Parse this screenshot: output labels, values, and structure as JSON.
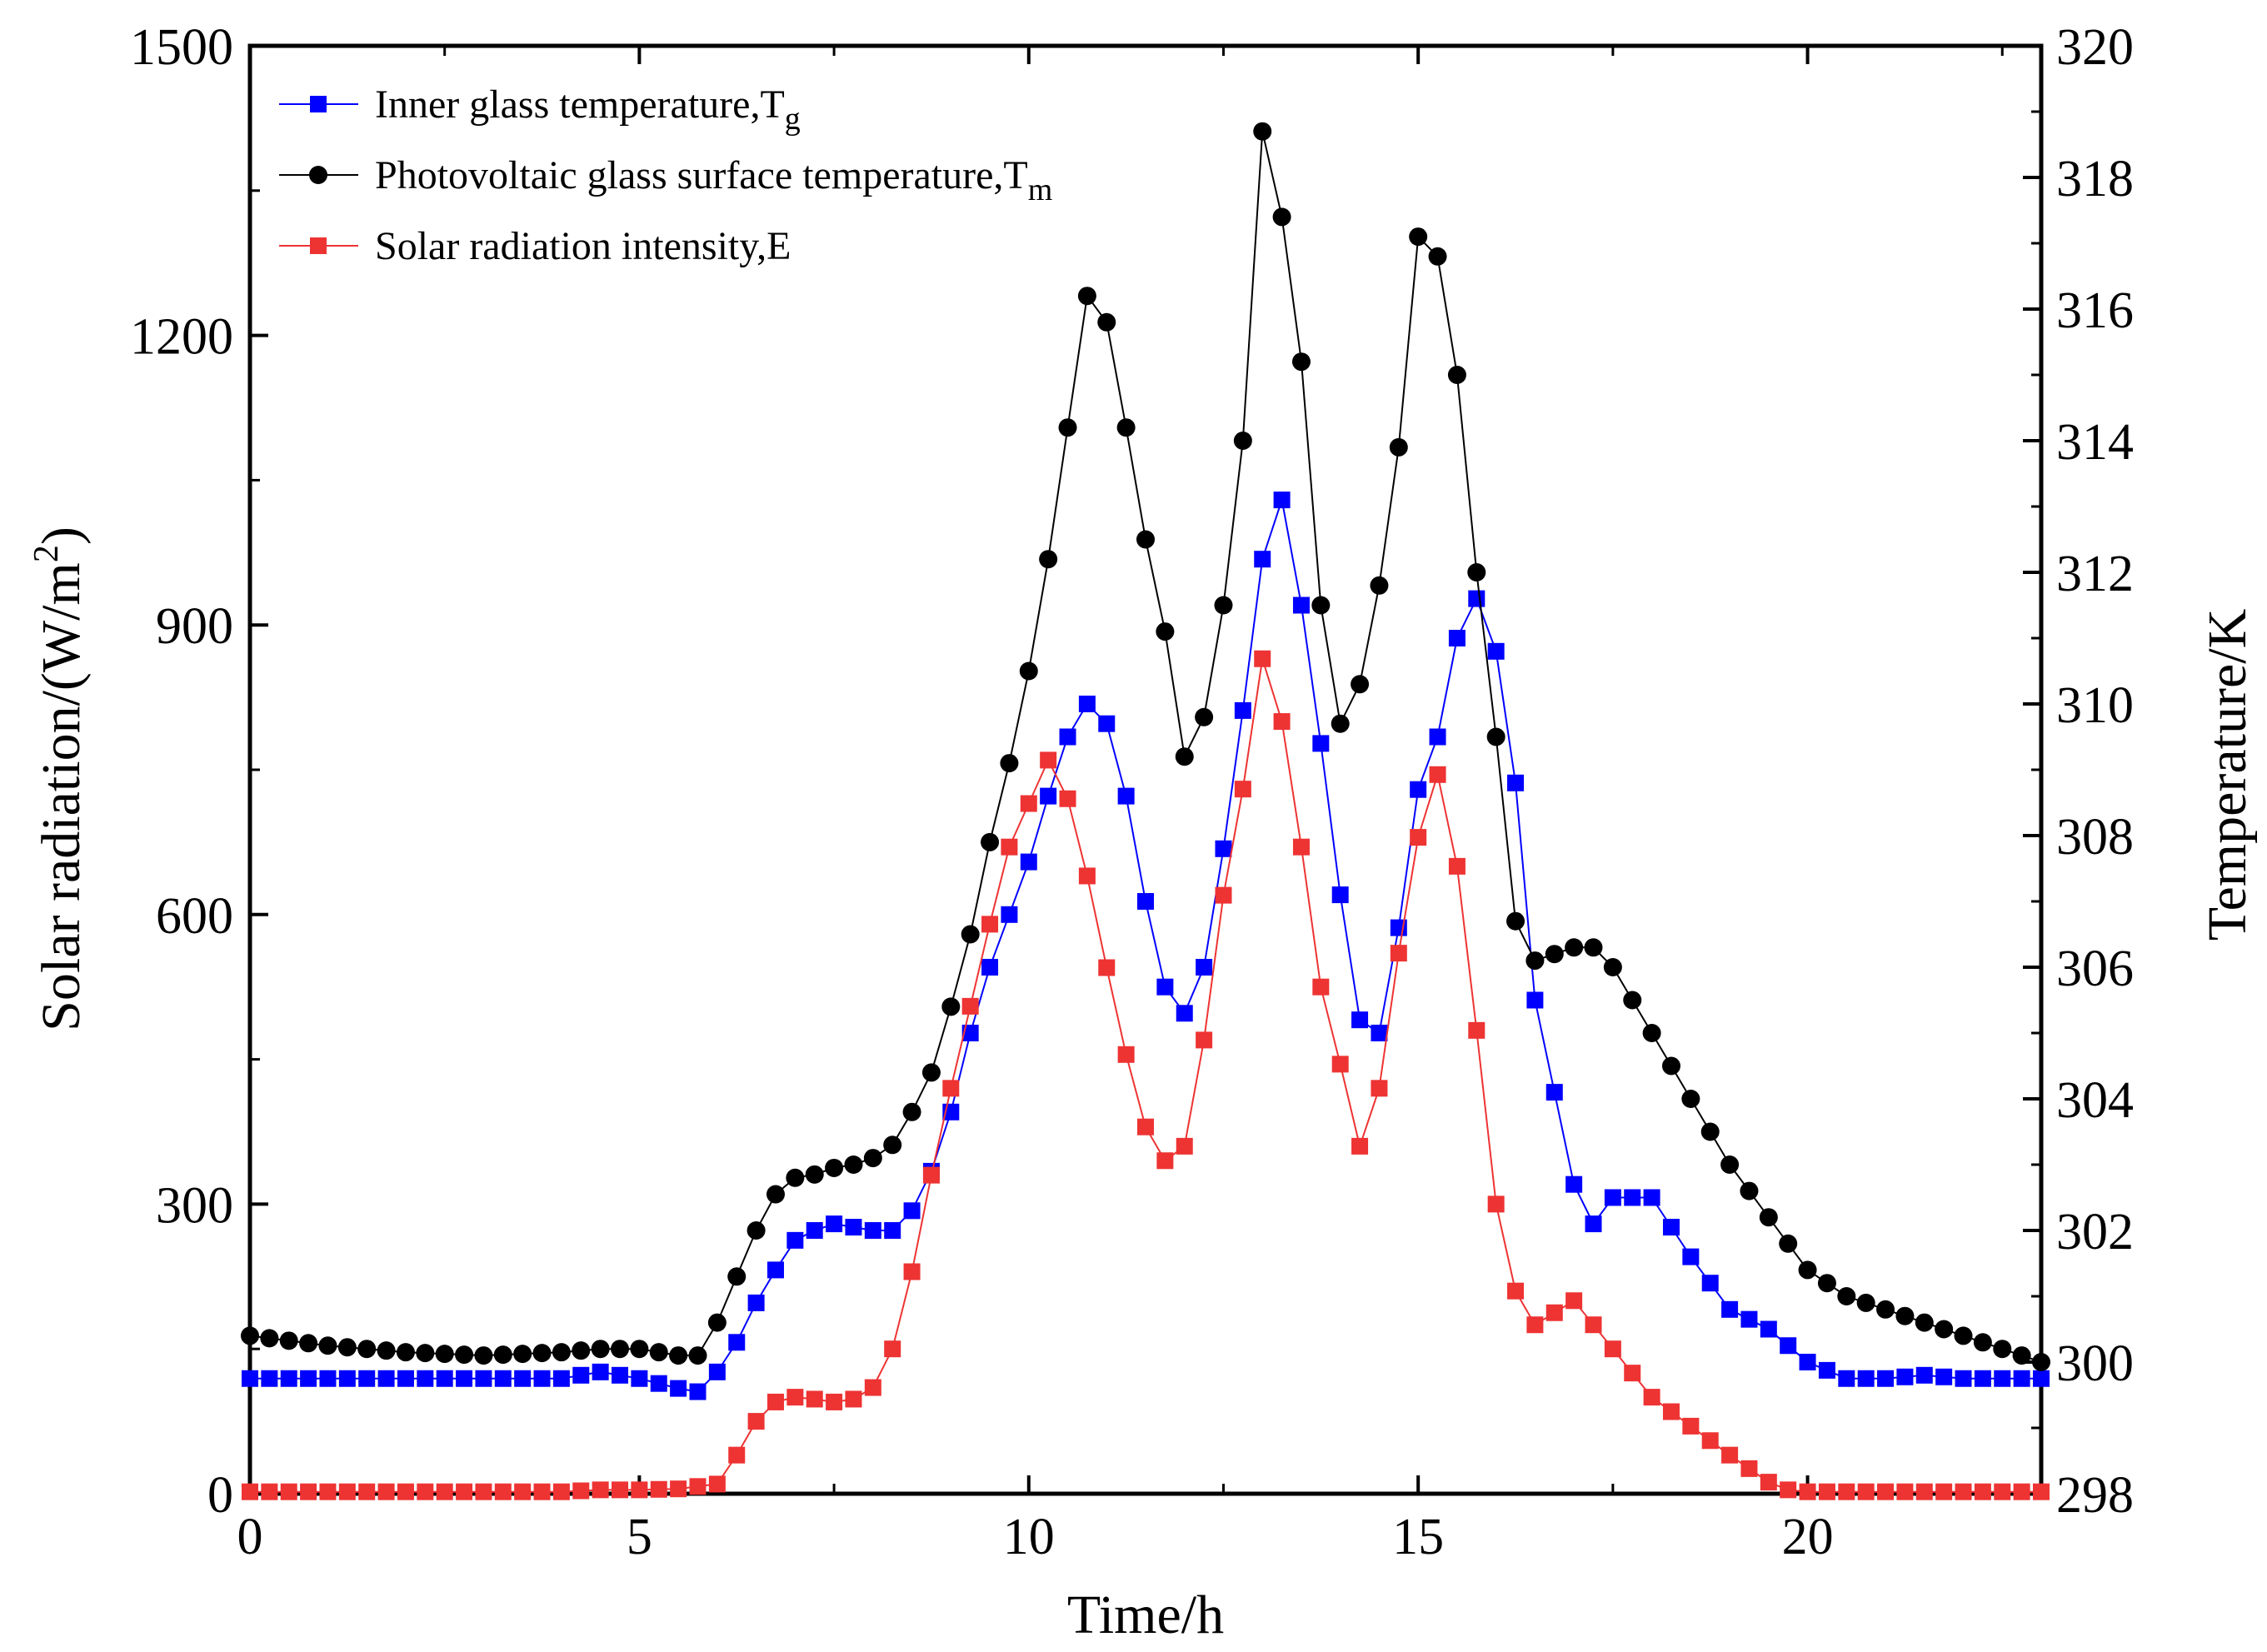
{
  "chart_data": {
    "type": "line",
    "xlabel": "Time/h",
    "ylabel_left": "Solar radiation/(W/m",
    "ylabel_left_sup": "2",
    "ylabel_left_close": ")",
    "ylabel_right": "Temperature/K",
    "xlim": [
      0,
      23
    ],
    "ylim_left": [
      0,
      1500
    ],
    "ylim_right": [
      298,
      320
    ],
    "x_ticks": [
      0,
      5,
      10,
      15,
      20
    ],
    "x_tick_labels": [
      "0",
      "5",
      "10",
      "15",
      "20"
    ],
    "y_left_ticks": [
      0,
      300,
      600,
      900,
      1200,
      1500
    ],
    "y_left_tick_labels": [
      "0",
      "300",
      "600",
      "900",
      "1200",
      "1500"
    ],
    "y_right_ticks": [
      298,
      300,
      302,
      304,
      306,
      308,
      310,
      312,
      314,
      316,
      318,
      320
    ],
    "y_right_tick_labels": [
      "298",
      "300",
      "302",
      "304",
      "306",
      "308",
      "310",
      "312",
      "314",
      "316",
      "318",
      "320"
    ],
    "grid": false,
    "legend_position": "top-left",
    "series": [
      {
        "name": "Inner glass temperature,T",
        "name_sub": "g",
        "axis": "right",
        "marker": "square",
        "color": "#0000ff",
        "x": [
          0,
          1,
          2,
          3,
          4,
          4.5,
          5,
          5.5,
          5.75,
          6,
          6.25,
          6.5,
          6.75,
          7,
          7.25,
          7.5,
          7.75,
          8,
          8.25,
          8.5,
          8.75,
          9,
          9.25,
          9.5,
          9.75,
          10,
          10.25,
          10.5,
          10.75,
          11,
          11.25,
          11.5,
          11.75,
          12,
          12.25,
          12.5,
          12.75,
          13,
          13.25,
          13.5,
          13.75,
          14,
          14.25,
          14.5,
          14.75,
          15,
          15.25,
          15.5,
          15.75,
          16,
          16.25,
          16.5,
          17,
          17.25,
          17.5,
          18,
          18.5,
          19,
          19.5,
          20,
          20.5,
          21,
          21.5,
          22,
          23
        ],
        "values": [
          299.75,
          299.75,
          299.75,
          299.75,
          299.75,
          299.85,
          299.75,
          299.6,
          299.55,
          299.85,
          300.3,
          300.9,
          301.4,
          301.85,
          302.0,
          302.1,
          302.05,
          302.0,
          302.0,
          302.3,
          302.9,
          303.8,
          305.0,
          306.0,
          306.8,
          307.6,
          308.6,
          309.5,
          310.0,
          309.7,
          308.6,
          307.0,
          305.7,
          305.3,
          306.0,
          307.8,
          309.9,
          312.2,
          313.1,
          311.5,
          309.4,
          307.1,
          305.2,
          305.0,
          306.6,
          308.7,
          309.5,
          311.0,
          311.6,
          310.8,
          308.8,
          305.5,
          302.7,
          302.1,
          302.5,
          302.5,
          301.6,
          300.8,
          300.5,
          300.0,
          299.75,
          299.75,
          299.8,
          299.75,
          299.75
        ]
      },
      {
        "name": "Photovoltaic glass surface temperature,T",
        "name_sub": "m",
        "axis": "right",
        "marker": "circle",
        "color": "#000000",
        "x": [
          0,
          1,
          2,
          3,
          4,
          4.5,
          5,
          5.5,
          5.75,
          6,
          6.25,
          6.5,
          6.75,
          7,
          7.25,
          7.5,
          7.75,
          8,
          8.25,
          8.5,
          8.75,
          9,
          9.25,
          9.5,
          9.75,
          10,
          10.25,
          10.5,
          10.75,
          11,
          11.25,
          11.5,
          11.75,
          12,
          12.25,
          12.5,
          12.75,
          13,
          13.25,
          13.5,
          13.75,
          14,
          14.25,
          14.5,
          14.75,
          15,
          15.25,
          15.5,
          15.75,
          16,
          16.25,
          16.5,
          17,
          17.25,
          17.5,
          18,
          18.5,
          19,
          19.5,
          20,
          20.5,
          21,
          21.5,
          22,
          23
        ],
        "values": [
          300.4,
          300.25,
          300.15,
          300.1,
          300.15,
          300.2,
          300.2,
          300.1,
          300.1,
          300.6,
          301.3,
          302.0,
          302.55,
          302.8,
          302.85,
          302.95,
          303.0,
          303.1,
          303.3,
          303.8,
          304.4,
          305.4,
          306.5,
          307.9,
          309.1,
          310.5,
          312.2,
          314.2,
          316.2,
          315.8,
          314.2,
          312.5,
          311.1,
          309.2,
          309.8,
          311.5,
          314.0,
          318.7,
          317.4,
          315.2,
          311.5,
          309.7,
          310.3,
          311.8,
          313.9,
          317.1,
          316.8,
          315.0,
          312.0,
          309.5,
          306.7,
          306.1,
          306.3,
          306.3,
          306.0,
          305.0,
          304.0,
          303.0,
          302.2,
          301.4,
          301.0,
          300.8,
          300.6,
          300.4,
          300.0
        ]
      },
      {
        "name": "Solar radiation intensity,E",
        "axis": "left",
        "marker": "square",
        "color": "#ee3333",
        "x": [
          0,
          1,
          2,
          3,
          4,
          4.5,
          5,
          5.5,
          6,
          6.25,
          6.5,
          6.75,
          7,
          7.25,
          7.5,
          7.75,
          8,
          8.25,
          8.5,
          8.75,
          9,
          9.25,
          9.5,
          9.75,
          10,
          10.25,
          10.5,
          10.75,
          11,
          11.25,
          11.5,
          11.75,
          12,
          12.25,
          12.5,
          12.75,
          13,
          13.25,
          13.5,
          13.75,
          14,
          14.25,
          14.5,
          14.75,
          15,
          15.25,
          15.5,
          15.75,
          16,
          16.25,
          16.5,
          17,
          17.25,
          17.5,
          18,
          18.5,
          19,
          19.5,
          19.75,
          20,
          20.5,
          21,
          21.5,
          22,
          23
        ],
        "values": [
          2,
          2,
          2,
          2,
          2,
          4,
          4,
          5,
          10,
          40,
          75,
          95,
          100,
          98,
          95,
          98,
          110,
          150,
          230,
          330,
          420,
          505,
          590,
          670,
          715,
          760,
          720,
          640,
          545,
          455,
          380,
          345,
          360,
          470,
          620,
          730,
          865,
          800,
          670,
          525,
          445,
          360,
          420,
          560,
          680,
          745,
          650,
          480,
          300,
          210,
          175,
          200,
          175,
          150,
          100,
          70,
          40,
          12,
          4,
          2,
          2,
          2,
          2,
          2,
          2
        ]
      }
    ]
  }
}
